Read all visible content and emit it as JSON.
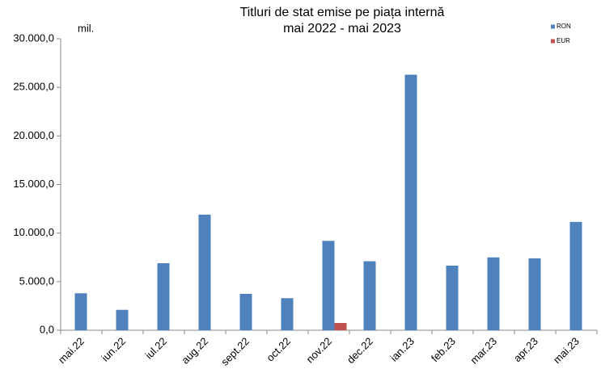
{
  "chart_data": {
    "type": "bar",
    "title": "Titluri de stat emise pe piața internă",
    "subtitle": "mai 2022 - mai 2023",
    "y_unit_label": "mil.",
    "categories": [
      "mai.22",
      "iun.22",
      "iul.22",
      "aug.22",
      "sept.22",
      "oct.22",
      "nov.22",
      "dec.22",
      "ian.23",
      "feb.23",
      "mar.23",
      "apr.23",
      "mai.23"
    ],
    "series": [
      {
        "name": "RON",
        "color": "#4f81bd",
        "values": [
          3800,
          2100,
          6900,
          11900,
          3750,
          3300,
          9200,
          7100,
          26300,
          6650,
          7500,
          7400,
          11150
        ]
      },
      {
        "name": "EUR",
        "color": "#c0504d",
        "values": [
          0,
          0,
          0,
          0,
          0,
          0,
          750,
          0,
          0,
          0,
          0,
          0,
          0
        ]
      }
    ],
    "ylim": [
      0,
      30000
    ],
    "yticks": [
      {
        "value": 0,
        "label": "0,0"
      },
      {
        "value": 5000,
        "label": "5.000,0"
      },
      {
        "value": 10000,
        "label": "10.000,0"
      },
      {
        "value": 15000,
        "label": "15.000,0"
      },
      {
        "value": 20000,
        "label": "20.000,0"
      },
      {
        "value": 25000,
        "label": "25.000,0"
      },
      {
        "value": 30000,
        "label": "30.000,0"
      }
    ],
    "grid": false,
    "legend": "top-right"
  }
}
